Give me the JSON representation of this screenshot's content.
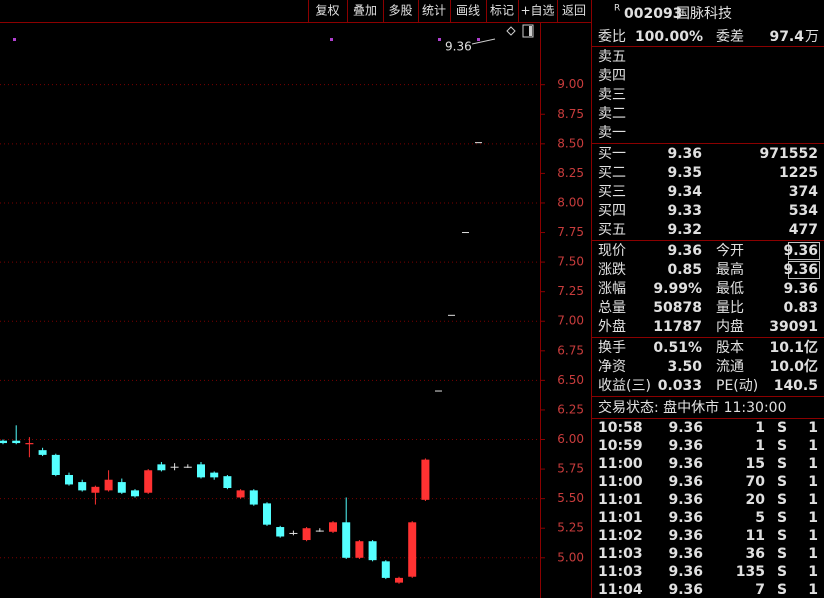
{
  "toolbar": [
    "复权",
    "叠加",
    "多股",
    "统计",
    "画线",
    "标记",
    "+自选",
    "返回"
  ],
  "chart_data": {
    "type": "candlestick",
    "annotation": "9.36",
    "ylim": [
      4.66,
      9.53
    ],
    "yticks": [
      {
        "value": 5,
        "label": "5.00"
      },
      5.25,
      {
        "value": 5.5,
        "label": "5.50"
      },
      5.75,
      {
        "value": 6,
        "label": "6.00"
      },
      6.25,
      {
        "value": 6.5,
        "label": "6.50"
      },
      6.75,
      {
        "value": 7,
        "label": "7.00"
      },
      7.25,
      {
        "value": 7.5,
        "label": "7.50"
      },
      7.75,
      {
        "value": 8,
        "label": "8.00"
      },
      8.25,
      {
        "value": 8.5,
        "label": "8.50"
      },
      8.75,
      {
        "value": 9,
        "label": "9.00"
      }
    ],
    "grid": true,
    "open": [
      5.99,
      5.99,
      5.96,
      5.91,
      5.87,
      5.7,
      5.64,
      5.55,
      5.57,
      5.64,
      5.57,
      5.55,
      5.79,
      5.77,
      5.77,
      5.79,
      5.72,
      5.69,
      5.51,
      5.57,
      5.46,
      5.26,
      5.21,
      5.15,
      5.23,
      5.22,
      5.3,
      5.0,
      5.14,
      4.97,
      4.79,
      4.84,
      5.49
    ],
    "high": [
      6.0,
      6.12,
      6.02,
      5.93,
      5.88,
      5.72,
      5.66,
      5.61,
      5.74,
      5.67,
      5.58,
      5.75,
      5.81,
      5.8,
      5.79,
      5.81,
      5.73,
      5.7,
      5.58,
      5.58,
      5.47,
      5.27,
      5.23,
      5.26,
      5.25,
      5.31,
      5.51,
      5.15,
      5.15,
      4.98,
      4.84,
      5.31,
      5.84
    ],
    "low": [
      5.96,
      5.96,
      5.85,
      5.86,
      5.69,
      5.61,
      5.56,
      5.45,
      5.56,
      5.54,
      5.51,
      5.54,
      5.73,
      5.74,
      5.76,
      5.67,
      5.66,
      5.58,
      5.5,
      5.44,
      5.27,
      5.17,
      5.19,
      5.14,
      5.22,
      5.21,
      4.99,
      4.99,
      4.97,
      4.82,
      4.78,
      4.83,
      5.48
    ],
    "close": [
      5.97,
      5.97,
      5.97,
      5.87,
      5.7,
      5.62,
      5.57,
      5.6,
      5.66,
      5.55,
      5.52,
      5.74,
      5.74,
      5.77,
      5.77,
      5.68,
      5.68,
      5.59,
      5.57,
      5.45,
      5.28,
      5.18,
      5.21,
      5.25,
      5.23,
      5.3,
      5.0,
      5.14,
      4.98,
      4.83,
      4.83,
      5.3,
      5.83
    ],
    "price_marks": [
      8.51,
      7.75,
      7.05,
      6.41
    ]
  },
  "panel": {
    "header": {
      "badge": "R",
      "code": "002093",
      "name": "国脉科技"
    },
    "ratio": {
      "label": "委比",
      "value": "100.00%",
      "diff_label": "委差",
      "diff": "97.4",
      "diff_unit": "万"
    },
    "sell": [
      "卖五",
      "卖四",
      "卖三",
      "卖二",
      "卖一"
    ],
    "buy": [
      {
        "label": "买一",
        "price": "9.36",
        "volume": "971552"
      },
      {
        "label": "买二",
        "price": "9.35",
        "volume": "1225"
      },
      {
        "label": "买三",
        "price": "9.34",
        "volume": "374"
      },
      {
        "label": "买四",
        "price": "9.33",
        "volume": "534"
      },
      {
        "label": "买五",
        "price": "9.32",
        "volume": "477"
      }
    ],
    "quote": [
      [
        "现价",
        "9.36",
        "今开",
        "9.36"
      ],
      [
        "涨跌",
        "0.85",
        "最高",
        "9.36"
      ],
      [
        "涨幅",
        "9.99%",
        "最低",
        "9.36"
      ],
      [
        "总量",
        "50878",
        "量比",
        "0.83"
      ],
      [
        "外盘",
        "11787",
        "内盘",
        "39091"
      ]
    ],
    "stats": [
      [
        "换手",
        "0.51%",
        "股本",
        "10.1亿"
      ],
      [
        "净资",
        "3.50",
        "流通",
        "10.0亿"
      ],
      [
        "收益(三)",
        "0.033",
        "PE(动)",
        "140.5"
      ]
    ],
    "status": "交易状态: 盘中休市 11:30:00",
    "trades": [
      [
        "10:58",
        "9.36",
        "1",
        "S",
        "1"
      ],
      [
        "10:59",
        "9.36",
        "1",
        "S",
        "1"
      ],
      [
        "11:00",
        "9.36",
        "15",
        "S",
        "1"
      ],
      [
        "11:00",
        "9.36",
        "70",
        "S",
        "1"
      ],
      [
        "11:01",
        "9.36",
        "20",
        "S",
        "1"
      ],
      [
        "11:01",
        "9.36",
        "5",
        "S",
        "1"
      ],
      [
        "11:02",
        "9.36",
        "11",
        "S",
        "1"
      ],
      [
        "11:03",
        "9.36",
        "36",
        "S",
        "1"
      ],
      [
        "11:03",
        "9.36",
        "135",
        "S",
        "1"
      ],
      [
        "11:04",
        "9.36",
        "7",
        "S",
        "1"
      ]
    ]
  }
}
